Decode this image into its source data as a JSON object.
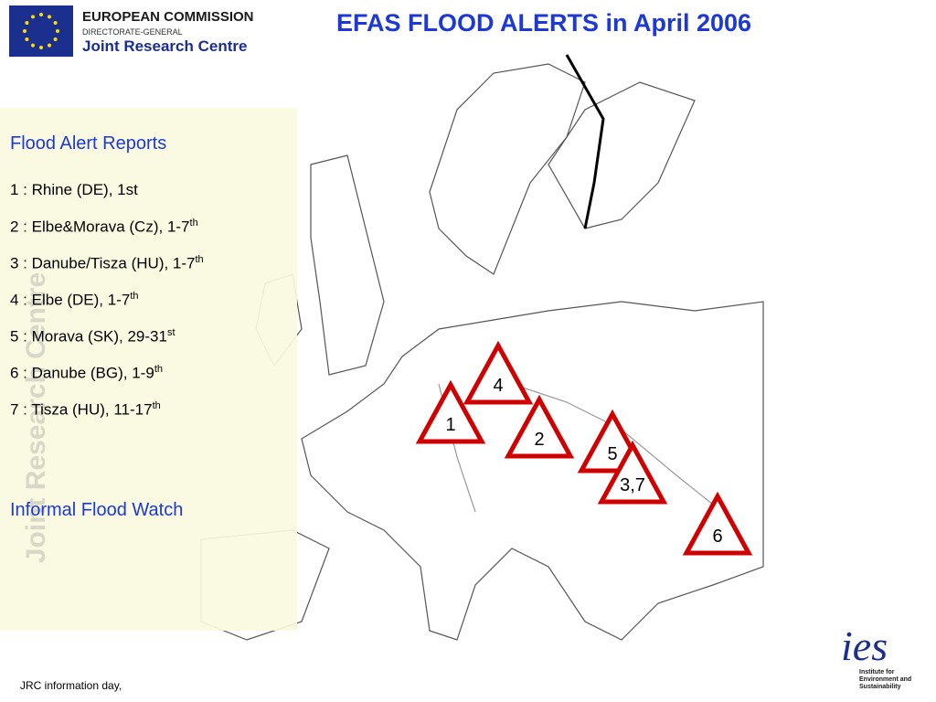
{
  "header": {
    "org": "EUROPEAN COMMISSION",
    "dg": "DIRECTORATE-GENERAL",
    "centre": "Joint Research Centre"
  },
  "title": "EFAS FLOOD ALERTS in April 2006",
  "reports": {
    "heading": "Flood Alert Reports",
    "items": [
      {
        "text": "1 : Rhine (DE), 1st"
      },
      {
        "text": "2 : Elbe&Morava (Cz), 1-7",
        "sup": "th"
      },
      {
        "text": "3 : Danube/Tisza (HU), 1-7",
        "sup": "th"
      },
      {
        "text": "4 : Elbe (DE), 1-7",
        "sup": "th"
      },
      {
        "text": "5 : Morava (SK), 29-31",
        "sup": "st"
      },
      {
        "text": "6 : Danube (BG), 1-9",
        "sup": "th"
      },
      {
        "text": "7 : Tisza (HU), 11-17",
        "sup": "th"
      }
    ]
  },
  "watch": "Informal Flood Watch",
  "watermark": "Joint Research Centre",
  "markers": [
    {
      "label": "4"
    },
    {
      "label": "1"
    },
    {
      "label": "2"
    },
    {
      "label": "5"
    },
    {
      "label": "3,7"
    },
    {
      "label": "6"
    }
  ],
  "footer": "JRC information day,",
  "logo": {
    "name": "ies",
    "line1": "Institute for",
    "line2": "Environment and",
    "line3": "Sustainability"
  }
}
